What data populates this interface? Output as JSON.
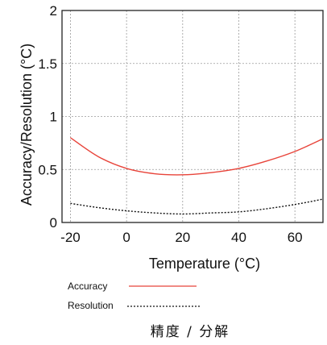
{
  "chart_data": {
    "type": "line",
    "title": "",
    "xlabel": "Temperature (°C)",
    "ylabel": "Accuracy/Resolution (°C)",
    "xlim": [
      -23,
      70
    ],
    "ylim": [
      0,
      2
    ],
    "xticks": [
      -20,
      0,
      20,
      40,
      60
    ],
    "xtick_labels": [
      "-20",
      "0",
      "20",
      "40",
      "60"
    ],
    "yticks": [
      0,
      0.5,
      1,
      1.5,
      2
    ],
    "ytick_labels": [
      "0",
      "0.5",
      "1",
      "1.5",
      "2"
    ],
    "grid": true,
    "legend_position": "bottom-left, below plot",
    "series": [
      {
        "name": "Accuracy",
        "color": "#e8443a",
        "style": "solid",
        "x": [
          -20,
          -10,
          0,
          10,
          20,
          30,
          40,
          50,
          60,
          70
        ],
        "y": [
          0.8,
          0.62,
          0.51,
          0.46,
          0.45,
          0.47,
          0.51,
          0.58,
          0.67,
          0.79
        ]
      },
      {
        "name": "Resolution",
        "color": "#111111",
        "style": "dotted",
        "x": [
          -20,
          -10,
          0,
          10,
          20,
          30,
          40,
          50,
          60,
          70
        ],
        "y": [
          0.18,
          0.14,
          0.11,
          0.09,
          0.08,
          0.09,
          0.1,
          0.13,
          0.17,
          0.22
        ]
      }
    ],
    "caption": "精度 / 分解"
  }
}
